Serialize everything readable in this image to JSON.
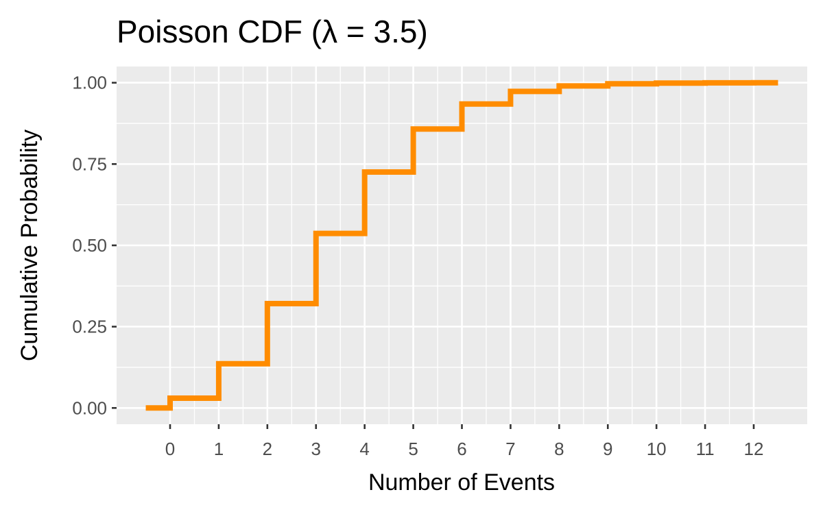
{
  "chart_data": {
    "type": "line",
    "title": "Poisson CDF (λ = 3.5)",
    "xlabel": "Number of Events",
    "ylabel": "Cumulative Probability",
    "x_ticks": [
      "0",
      "1",
      "2",
      "3",
      "4",
      "5",
      "6",
      "7",
      "8",
      "9",
      "10",
      "11",
      "12"
    ],
    "y_ticks": [
      "0.00",
      "0.25",
      "0.50",
      "0.75",
      "1.00"
    ],
    "xlim": [
      -1.1,
      13.1
    ],
    "ylim": [
      -0.05,
      1.05
    ],
    "grid": true,
    "series": [
      {
        "color": "#ff8c00",
        "x": [
          0,
          1,
          2,
          3,
          4,
          5,
          6,
          7,
          8,
          9,
          10,
          11,
          12
        ],
        "values": [
          0.0302,
          0.1359,
          0.3208,
          0.5366,
          0.7254,
          0.8576,
          0.9347,
          0.9733,
          0.9901,
          0.9967,
          0.999,
          0.9997,
          0.9999
        ]
      }
    ]
  },
  "colors": {
    "panel": "#ebebeb",
    "grid": "#ffffff",
    "line": "#ff8c00"
  }
}
